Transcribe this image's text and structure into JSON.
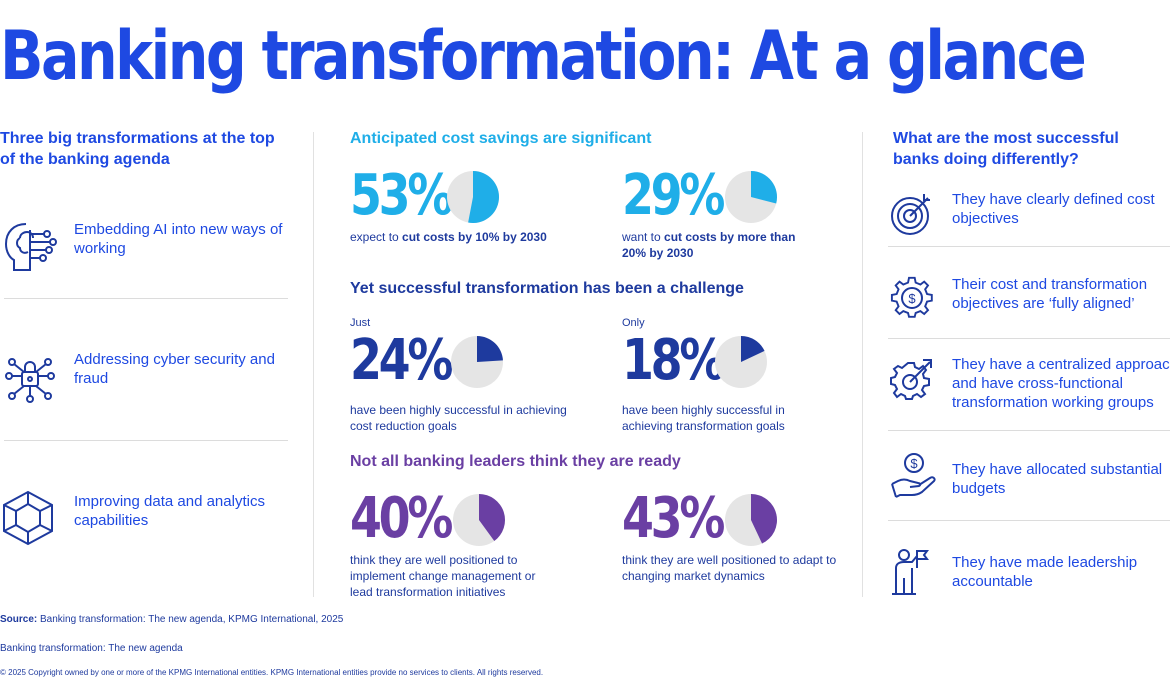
{
  "title": "Banking transformation: At a glance",
  "left": {
    "heading": "Three big transformations at the top of the banking agenda",
    "items": [
      {
        "label": "Embedding AI into new ways of working",
        "icon": "ai-brain-icon"
      },
      {
        "label": "Addressing cyber security and fraud",
        "icon": "cyber-lock-icon"
      },
      {
        "label": "Improving data and analytics capabilities",
        "icon": "data-cube-icon"
      }
    ]
  },
  "middle": {
    "section1": {
      "heading": "Anticipated cost savings are significant",
      "color": "#1faee8",
      "stats": [
        {
          "pct": "53%",
          "value": 53,
          "pre": "",
          "desc_plain": "expect to ",
          "desc_bold": "cut costs by 10% by 2030"
        },
        {
          "pct": "29%",
          "value": 29,
          "pre": "",
          "desc_plain": "want to ",
          "desc_bold": "cut costs by more than 20% by 2030"
        }
      ]
    },
    "section2": {
      "heading": "Yet successful transformation has been a challenge",
      "color": "#1e3a9e",
      "stats": [
        {
          "pct": "24%",
          "value": 24,
          "pre": "Just",
          "desc": "have been highly successful in achieving cost reduction goals"
        },
        {
          "pct": "18%",
          "value": 18,
          "pre": "Only",
          "desc": "have been highly successful in achieving transformation goals"
        }
      ]
    },
    "section3": {
      "heading": "Not all banking leaders think they are ready",
      "color": "#6a3fa3",
      "stats": [
        {
          "pct": "40%",
          "value": 40,
          "pre": "",
          "desc": "think they are well positioned to implement change management or lead transformation initiatives"
        },
        {
          "pct": "43%",
          "value": 43,
          "pre": "",
          "desc": "think they are well positioned to adapt to changing market dynamics"
        }
      ]
    }
  },
  "right": {
    "heading": "What are the most successful banks doing differently?",
    "items": [
      {
        "label": "They have clearly defined cost objectives",
        "icon": "target-icon"
      },
      {
        "label": "Their cost and transformation objectives are ‘fully aligned’",
        "icon": "gear-dollar-icon"
      },
      {
        "label": "They have a centralized approach and have cross-functional transformation working groups",
        "icon": "gear-arrow-icon"
      },
      {
        "label": "They have allocated substantial budgets",
        "icon": "hand-coin-icon"
      },
      {
        "label": "They have made leadership accountable",
        "icon": "leader-flag-icon"
      }
    ]
  },
  "footer": {
    "source_label": "Source:",
    "source_text": "Banking transformation: The new agenda, KPMG International, 2025",
    "publication": "Banking transformation: The new agenda",
    "copyright": "© 2025 Copyright owned by one or more of the KPMG International entities. KPMG International entities provide no services to clients. All rights reserved."
  },
  "colors": {
    "primary": "#1e49e2",
    "dark_blue": "#1e3a9e",
    "cyan": "#1faee8",
    "purple": "#6a3fa3",
    "pie_bg": "#e5e5e5"
  }
}
